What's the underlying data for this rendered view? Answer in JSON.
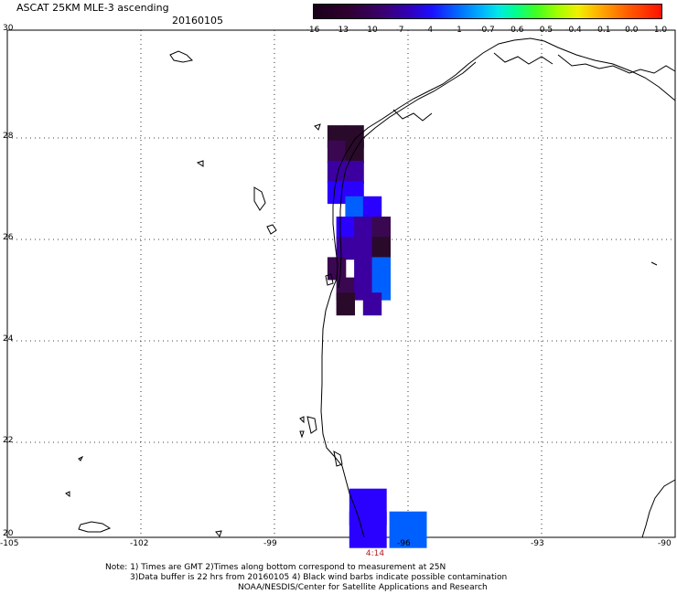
{
  "header": {
    "title": "ASCAT 25KM MLE-3 ascending",
    "date": "20160105"
  },
  "colorbar": {
    "ticks": [
      "-16",
      "-13",
      "-10",
      "-7",
      "-4",
      "-1",
      "-0.7",
      "-0.6",
      "-0.5",
      "-0.4",
      "-0.1",
      "0.0",
      "1.0"
    ],
    "colors": [
      "#2a0a2a",
      "#3a0850",
      "#3c00a0",
      "#2a00ff",
      "#0060ff",
      "#00a0ff",
      "#00e0e0",
      "#00ff80",
      "#40ff00",
      "#c0ff00",
      "#ffd000",
      "#ff8000",
      "#ff2000"
    ]
  },
  "axes": {
    "lat_labels": [
      "30",
      "28",
      "26",
      "24",
      "22",
      "20"
    ],
    "lon_labels": [
      "-105",
      "-102",
      "-99",
      "-96",
      "-93",
      "-90"
    ],
    "grid": "dotted"
  },
  "time_label": "4:14",
  "notes": [
    "Note: 1) Times are GMT 2)Times along bottom correspond to measurement at 25N",
    "3)Data buffer is 22 hrs from 20160105 4) Black wind barbs indicate possible contamination",
    "NOAA/NESDIS/Center for Satellite Applications and Research"
  ],
  "data_cells": [
    {
      "lon": -97.6,
      "lat": 27.9,
      "value": "-16"
    },
    {
      "lon": -97.2,
      "lat": 27.9,
      "value": "-16"
    },
    {
      "lon": -97.6,
      "lat": 27.6,
      "value": "-13"
    },
    {
      "lon": -97.2,
      "lat": 27.6,
      "value": "-16"
    },
    {
      "lon": -97.6,
      "lat": 27.2,
      "value": "-10"
    },
    {
      "lon": -97.2,
      "lat": 27.2,
      "value": "-10"
    },
    {
      "lon": -97.6,
      "lat": 26.8,
      "value": "-7"
    },
    {
      "lon": -97.2,
      "lat": 26.8,
      "value": "-7"
    },
    {
      "lon": -97.2,
      "lat": 26.5,
      "value": "-4"
    },
    {
      "lon": -96.8,
      "lat": 26.5,
      "value": "-7"
    },
    {
      "lon": -97.4,
      "lat": 26.1,
      "value": "-7"
    },
    {
      "lon": -97.0,
      "lat": 26.1,
      "value": "-10"
    },
    {
      "lon": -96.6,
      "lat": 26.1,
      "value": "-13"
    },
    {
      "lon": -97.4,
      "lat": 25.7,
      "value": "-10"
    },
    {
      "lon": -97.0,
      "lat": 25.7,
      "value": "-10"
    },
    {
      "lon": -96.6,
      "lat": 25.7,
      "value": "-16"
    },
    {
      "lon": -97.6,
      "lat": 25.3,
      "value": "-13"
    },
    {
      "lon": -97.0,
      "lat": 25.3,
      "value": "-10"
    },
    {
      "lon": -96.6,
      "lat": 25.3,
      "value": "-4"
    },
    {
      "lon": -97.4,
      "lat": 24.9,
      "value": "-13"
    },
    {
      "lon": -97.0,
      "lat": 24.9,
      "value": "-10"
    },
    {
      "lon": -96.6,
      "lat": 24.9,
      "value": "-4"
    },
    {
      "lon": -97.4,
      "lat": 24.6,
      "value": "-16"
    },
    {
      "lon": -96.8,
      "lat": 24.6,
      "value": "-10"
    },
    {
      "lon": -96.9,
      "lat": 20.6,
      "value": "-7"
    },
    {
      "lon": -96.9,
      "lat": 20.15,
      "value": "-7"
    },
    {
      "lon": -96.0,
      "lat": 20.15,
      "value": "-4"
    }
  ]
}
